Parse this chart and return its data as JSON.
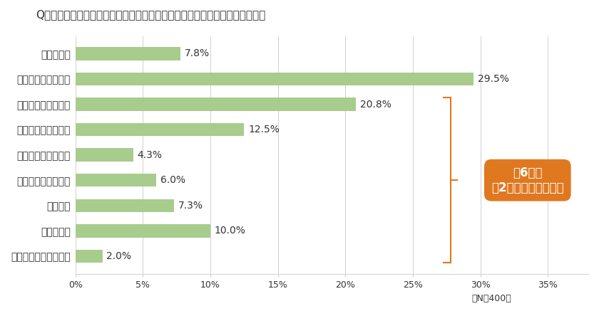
{
  "title": "Q６：オリーブオイルを開栓してからどのくらいで使い切りますか？（ＳＡ）",
  "categories": [
    "１カ月未満",
    "１カ月～２カ月未満",
    "２カ月～３カ月未満",
    "３カ月～４カ月未満",
    "４カ月～５カ月未満",
    "５カ月～６カ月未満",
    "半年以上",
    "分からない",
    "使い切ったことはない"
  ],
  "values": [
    7.8,
    29.5,
    20.8,
    12.5,
    4.3,
    6.0,
    7.3,
    10.0,
    2.0
  ],
  "bar_color": "#a8cc8c",
  "text_color": "#333333",
  "background_color": "#ffffff",
  "xlim": [
    0,
    38
  ],
  "xticks": [
    0,
    5,
    10,
    15,
    20,
    25,
    30,
    35
  ],
  "xlabel_n": "（N＝400）",
  "annotation_text": "約6割が\n「2カ月以上かかる」",
  "annotation_color": "#e07820",
  "brace_color": "#e07820",
  "title_fontsize": 11,
  "label_fontsize": 10,
  "value_fontsize": 10
}
